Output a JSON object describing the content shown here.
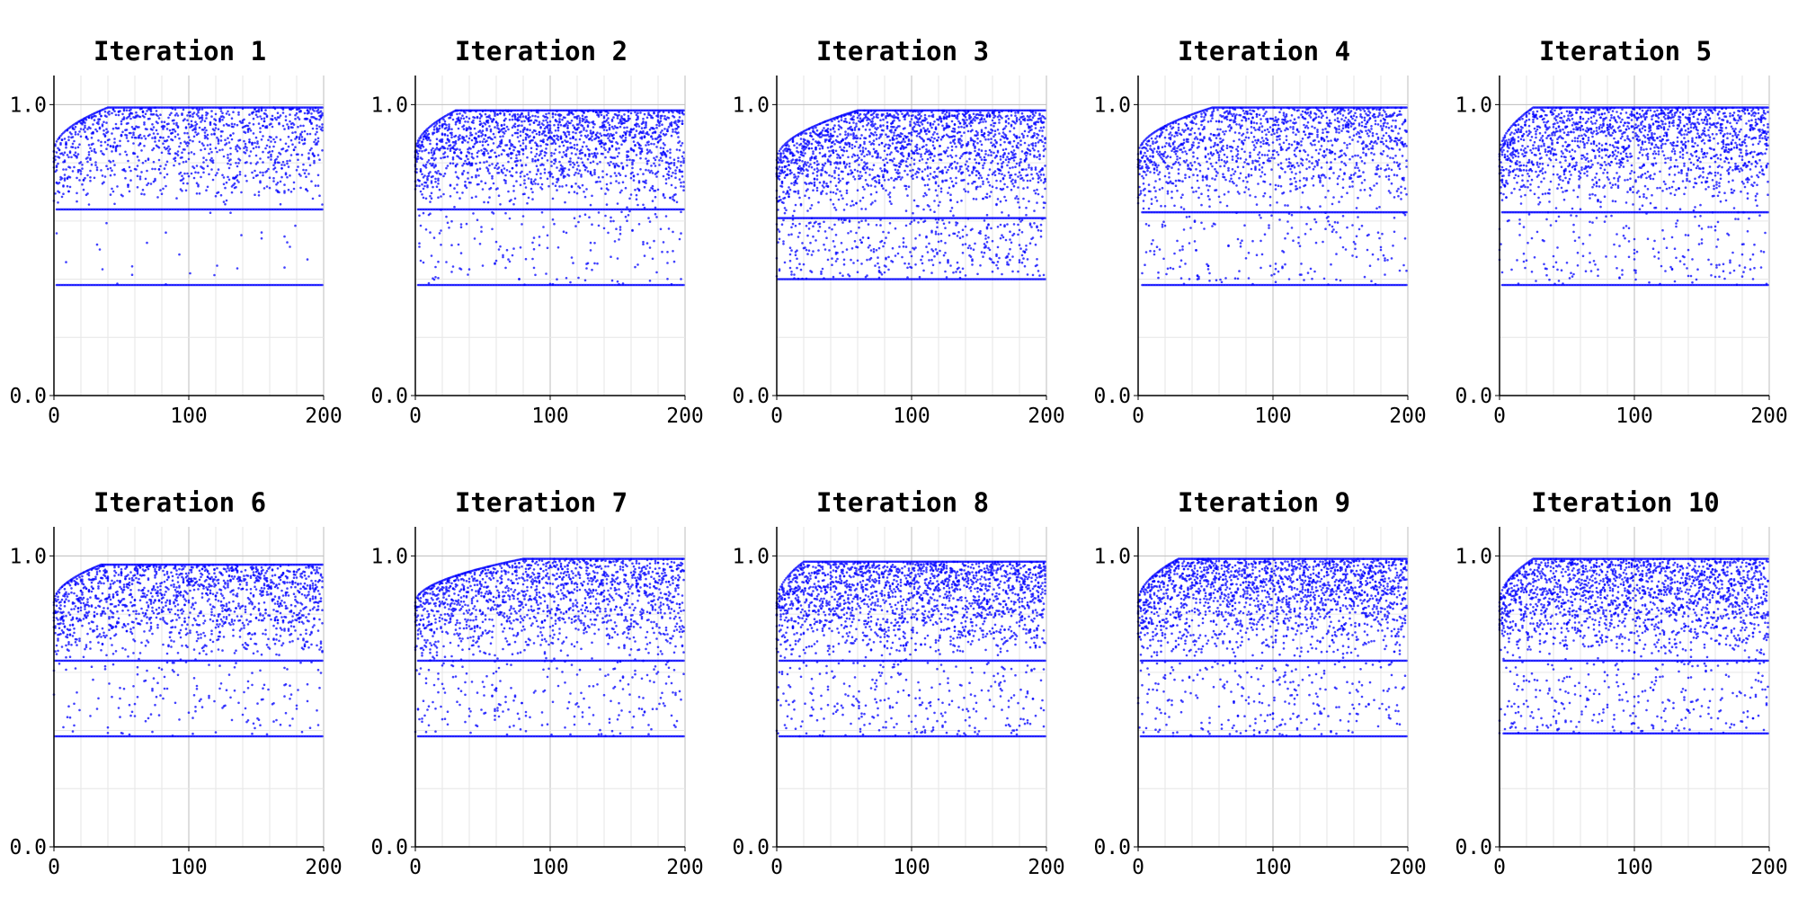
{
  "colors": {
    "points": "#0000ff",
    "axis": "#000000",
    "grid_major": "#bdbdbd",
    "grid_minor": "#e6e6e6"
  },
  "chart_data": [
    {
      "type": "scatter",
      "title": "Iteration 1",
      "xlim": [
        0,
        200
      ],
      "ylim": [
        0,
        1.1
      ],
      "xticks": [
        "0",
        "100",
        "200"
      ],
      "yticks": [
        "0.0",
        "1.0"
      ],
      "grid": true,
      "ceiling": 0.99,
      "mid_band": 0.64,
      "low_band": 0.38,
      "ramp_end": 40,
      "bands_start": 2,
      "low_density": 0.06,
      "scatter_density": 0.55
    },
    {
      "type": "scatter",
      "title": "Iteration 2",
      "xlim": [
        0,
        200
      ],
      "ylim": [
        0,
        1.1
      ],
      "xticks": [
        "0",
        "100",
        "200"
      ],
      "yticks": [
        "0.0",
        "1.0"
      ],
      "grid": true,
      "ceiling": 0.98,
      "mid_band": 0.64,
      "low_band": 0.38,
      "ramp_end": 30,
      "bands_start": 2,
      "low_density": 0.2,
      "scatter_density": 0.85
    },
    {
      "type": "scatter",
      "title": "Iteration 3",
      "xlim": [
        0,
        200
      ],
      "ylim": [
        0,
        1.1
      ],
      "xticks": [
        "0",
        "100",
        "200"
      ],
      "yticks": [
        "0.0",
        "1.0"
      ],
      "grid": true,
      "ceiling": 0.98,
      "mid_band": 0.61,
      "low_band": 0.4,
      "ramp_end": 60,
      "bands_start": 1,
      "low_density": 0.45,
      "scatter_density": 0.9
    },
    {
      "type": "scatter",
      "title": "Iteration 4",
      "xlim": [
        0,
        200
      ],
      "ylim": [
        0,
        1.1
      ],
      "xticks": [
        "0",
        "100",
        "200"
      ],
      "yticks": [
        "0.0",
        "1.0"
      ],
      "grid": true,
      "ceiling": 0.99,
      "mid_band": 0.63,
      "low_band": 0.38,
      "ramp_end": 55,
      "bands_start": 3,
      "low_density": 0.3,
      "scatter_density": 0.7
    },
    {
      "type": "scatter",
      "title": "Iteration 5",
      "xlim": [
        0,
        200
      ],
      "ylim": [
        0,
        1.1
      ],
      "xticks": [
        "0",
        "100",
        "200"
      ],
      "yticks": [
        "0.0",
        "1.0"
      ],
      "grid": true,
      "ceiling": 0.99,
      "mid_band": 0.63,
      "low_band": 0.38,
      "ramp_end": 25,
      "bands_start": 2,
      "low_density": 0.25,
      "scatter_density": 0.8
    },
    {
      "type": "scatter",
      "title": "Iteration 6",
      "xlim": [
        0,
        200
      ],
      "ylim": [
        0,
        1.1
      ],
      "xticks": [
        "0",
        "100",
        "200"
      ],
      "yticks": [
        "0.0",
        "1.0"
      ],
      "grid": true,
      "ceiling": 0.97,
      "mid_band": 0.64,
      "low_band": 0.38,
      "ramp_end": 35,
      "bands_start": 1,
      "low_density": 0.2,
      "scatter_density": 0.75
    },
    {
      "type": "scatter",
      "title": "Iteration 7",
      "xlim": [
        0,
        200
      ],
      "ylim": [
        0,
        1.1
      ],
      "xticks": [
        "0",
        "100",
        "200"
      ],
      "yticks": [
        "0.0",
        "1.0"
      ],
      "grid": true,
      "ceiling": 0.99,
      "mid_band": 0.64,
      "low_band": 0.38,
      "ramp_end": 80,
      "bands_start": 2,
      "low_density": 0.3,
      "scatter_density": 0.75
    },
    {
      "type": "scatter",
      "title": "Iteration 8",
      "xlim": [
        0,
        200
      ],
      "ylim": [
        0,
        1.1
      ],
      "xticks": [
        "0",
        "100",
        "200"
      ],
      "yticks": [
        "0.0",
        "1.0"
      ],
      "grid": true,
      "ceiling": 0.98,
      "mid_band": 0.64,
      "low_band": 0.38,
      "ramp_end": 20,
      "bands_start": 2,
      "low_density": 0.3,
      "scatter_density": 0.95
    },
    {
      "type": "scatter",
      "title": "Iteration 9",
      "xlim": [
        0,
        200
      ],
      "ylim": [
        0,
        1.1
      ],
      "xticks": [
        "0",
        "100",
        "200"
      ],
      "yticks": [
        "0.0",
        "1.0"
      ],
      "grid": true,
      "ceiling": 0.99,
      "mid_band": 0.64,
      "low_band": 0.38,
      "ramp_end": 30,
      "bands_start": 2,
      "low_density": 0.3,
      "scatter_density": 0.95
    },
    {
      "type": "scatter",
      "title": "Iteration 10",
      "xlim": [
        0,
        200
      ],
      "ylim": [
        0,
        1.1
      ],
      "xticks": [
        "0",
        "100",
        "200"
      ],
      "yticks": [
        "0.0",
        "1.0"
      ],
      "grid": true,
      "ceiling": 0.99,
      "mid_band": 0.64,
      "low_band": 0.39,
      "ramp_end": 25,
      "bands_start": 3,
      "low_density": 0.3,
      "scatter_density": 0.95
    }
  ]
}
